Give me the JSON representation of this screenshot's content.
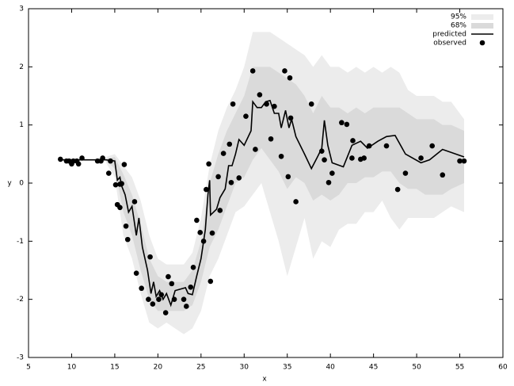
{
  "chart_data": {
    "type": "line",
    "x_label": "x",
    "y_label": "y",
    "xlim": [
      5,
      60
    ],
    "ylim": [
      -3,
      3
    ],
    "xticks": [
      5,
      10,
      15,
      20,
      25,
      30,
      35,
      40,
      45,
      50,
      55,
      60
    ],
    "yticks": [
      -3,
      -2,
      -1,
      0,
      1,
      2,
      3
    ],
    "legend": "upper right",
    "bands": [
      {
        "name": "95%",
        "color": "#ececec",
        "x": [
          14,
          15,
          16,
          17,
          18,
          19,
          20,
          21,
          22,
          23,
          24,
          25,
          26,
          27,
          28,
          29,
          30,
          31,
          32,
          33,
          34,
          35,
          36,
          37,
          38,
          39,
          40,
          41,
          42,
          43,
          44,
          45,
          46,
          47,
          48,
          49,
          50,
          51,
          52,
          53,
          54,
          55.5
        ],
        "upper": [
          0.45,
          0.5,
          0.3,
          0.1,
          -0.3,
          -0.9,
          -1.3,
          -1.4,
          -1.4,
          -1.4,
          -1.2,
          -0.6,
          0.3,
          0.9,
          1.3,
          1.6,
          2.0,
          2.6,
          2.6,
          2.6,
          2.5,
          2.4,
          2.3,
          2.2,
          2.0,
          2.2,
          2.0,
          2.0,
          1.9,
          2.0,
          1.9,
          2.0,
          1.9,
          2.0,
          1.9,
          1.6,
          1.5,
          1.5,
          1.5,
          1.4,
          1.4,
          1.1
        ],
        "lower": [
          0.35,
          0.1,
          -0.9,
          -1.3,
          -1.9,
          -2.4,
          -2.5,
          -2.4,
          -2.5,
          -2.6,
          -2.5,
          -2.2,
          -1.6,
          -1.3,
          -0.9,
          -0.5,
          -0.4,
          -0.2,
          0,
          -0.5,
          -1.0,
          -1.6,
          -1.1,
          -0.6,
          -1.3,
          -1.0,
          -1.1,
          -0.8,
          -0.7,
          -0.7,
          -0.5,
          -0.5,
          -0.3,
          -0.6,
          -0.8,
          -0.6,
          -0.6,
          -0.6,
          -0.6,
          -0.5,
          -0.4,
          -0.5
        ]
      },
      {
        "name": "68%",
        "color": "#dadada",
        "x": [
          14,
          15,
          16,
          17,
          18,
          19,
          20,
          21,
          22,
          23,
          24,
          25,
          26,
          27,
          28,
          29,
          30,
          31,
          32,
          33,
          34,
          35,
          36,
          37,
          38,
          39,
          40,
          41,
          42,
          43,
          44,
          45,
          46,
          47,
          48,
          49,
          50,
          51,
          52,
          53,
          54,
          55.5
        ],
        "upper": [
          0.42,
          0.45,
          0.15,
          -0.2,
          -0.7,
          -1.3,
          -1.6,
          -1.7,
          -1.7,
          -1.7,
          -1.5,
          -1.0,
          0.0,
          0.5,
          0.9,
          1.2,
          1.5,
          2.0,
          2.0,
          2.0,
          1.9,
          1.8,
          1.7,
          1.5,
          1.2,
          1.5,
          1.3,
          1.3,
          1.2,
          1.3,
          1.2,
          1.3,
          1.3,
          1.3,
          1.3,
          1.2,
          1.1,
          1.1,
          1.1,
          1.0,
          1.0,
          0.9
        ],
        "lower": [
          0.38,
          0.25,
          -0.5,
          -0.9,
          -1.5,
          -2.0,
          -2.2,
          -2.2,
          -2.2,
          -2.2,
          -2.1,
          -1.7,
          -1.1,
          -0.8,
          -0.4,
          0,
          0.1,
          0.4,
          0.6,
          0.4,
          0.2,
          -0.1,
          0.1,
          0,
          -0.3,
          -0.2,
          -0.3,
          -0.2,
          0,
          0,
          0.1,
          0.1,
          0.2,
          0.2,
          0,
          -0.1,
          -0.1,
          -0.2,
          -0.2,
          -0.2,
          -0.1,
          0
        ]
      }
    ],
    "series": [
      {
        "name": "predicted",
        "color": "#000000",
        "style": "line",
        "x": [
          8.6,
          10,
          12,
          14,
          15,
          15.3,
          15.6,
          15.8,
          16.2,
          16.6,
          17,
          17.5,
          17.8,
          18.2,
          18.8,
          19.2,
          19.5,
          19.8,
          20.2,
          20.6,
          21,
          21.5,
          22,
          23.2,
          23.5,
          24,
          24.5,
          25,
          25.5,
          25.8,
          26,
          26.1,
          26.8,
          27.2,
          27.8,
          28.2,
          28.6,
          29,
          29.4,
          30,
          30.8,
          31,
          31.5,
          32,
          32.5,
          33,
          33.5,
          34,
          34.3,
          34.8,
          35.2,
          35.5,
          36,
          37,
          37.8,
          38.5,
          39,
          39.3,
          39.7,
          40.2,
          41.5,
          42.5,
          43.5,
          44.3,
          45.5,
          46.5,
          47.5,
          48.7,
          50.5,
          51.5,
          53,
          55.5
        ],
        "values": [
          0.4,
          0.4,
          0.4,
          0.4,
          0.38,
          0.05,
          0.1,
          -0.05,
          -0.2,
          -0.5,
          -0.4,
          -0.9,
          -0.6,
          -1.1,
          -1.5,
          -1.9,
          -1.7,
          -1.95,
          -1.85,
          -2.0,
          -1.9,
          -2.1,
          -1.85,
          -1.8,
          -1.9,
          -1.92,
          -1.6,
          -1.3,
          -0.8,
          -0.2,
          0.05,
          -0.55,
          -0.45,
          -0.25,
          -0.1,
          0.3,
          0.3,
          0.5,
          0.75,
          0.65,
          0.9,
          1.4,
          1.3,
          1.3,
          1.4,
          1.42,
          1.2,
          1.2,
          0.95,
          1.25,
          0.95,
          1.1,
          0.8,
          0.5,
          0.25,
          0.45,
          0.6,
          1.08,
          0.65,
          0.35,
          0.28,
          0.65,
          0.72,
          0.6,
          0.72,
          0.8,
          0.82,
          0.5,
          0.35,
          0.4,
          0.58,
          0.45
        ]
      },
      {
        "name": "observed",
        "color": "#000000",
        "style": "points",
        "x": [
          8.7,
          9.4,
          9.7,
          10,
          10.2,
          10.6,
          10.8,
          11.2,
          13,
          13.4,
          13.6,
          14.3,
          14.5,
          15.1,
          15.3,
          15.6,
          15.6,
          15.8,
          16.1,
          16.3,
          16.5,
          17.3,
          17.5,
          18.1,
          18.9,
          19.1,
          19.4,
          20.1,
          20.4,
          20.9,
          21.2,
          21.6,
          21.9,
          23,
          23.3,
          23.8,
          24.1,
          24.5,
          24.9,
          25.3,
          25.6,
          25.9,
          26.1,
          26.3,
          27,
          27.2,
          27.6,
          28.3,
          28.5,
          28.7,
          29.4,
          30.2,
          31,
          31.3,
          31.8,
          32.6,
          33.1,
          33.5,
          34.3,
          34.7,
          35.1,
          35.3,
          35.4,
          36,
          37.8,
          39,
          39.3,
          39.8,
          40.2,
          41.3,
          41.9,
          42.5,
          42.6,
          43.5,
          43.9,
          44.5,
          46.5,
          47.8,
          48.7,
          50.5,
          51.8,
          53,
          55,
          55.5
        ],
        "values": [
          0.41,
          0.38,
          0.38,
          0.33,
          0.38,
          0.38,
          0.33,
          0.43,
          0.38,
          0.38,
          0.43,
          0.17,
          0.38,
          -0.03,
          -0.37,
          -0.02,
          -0.42,
          -0.01,
          0.32,
          -0.74,
          -0.97,
          -0.32,
          -1.55,
          -1.81,
          -2.0,
          -1.27,
          -2.08,
          -2.0,
          -1.92,
          -2.23,
          -1.61,
          -1.73,
          -2.0,
          -2.0,
          -2.12,
          -1.79,
          -1.45,
          -0.64,
          -0.85,
          -1.0,
          -0.11,
          0.33,
          -1.69,
          -0.86,
          0.11,
          -0.47,
          0.51,
          0.67,
          0.01,
          1.36,
          0.09,
          1.15,
          1.93,
          0.58,
          1.52,
          1.36,
          0.76,
          1.32,
          0.46,
          1.93,
          0.11,
          1.81,
          1.12,
          -0.32,
          1.36,
          0.55,
          0.4,
          0.01,
          0.17,
          1.04,
          1.01,
          0.43,
          0.73,
          0.41,
          0.43,
          0.64,
          0.64,
          -0.11,
          0.17,
          0.43,
          0.64,
          0.14,
          0.38,
          0.38
        ]
      }
    ]
  }
}
